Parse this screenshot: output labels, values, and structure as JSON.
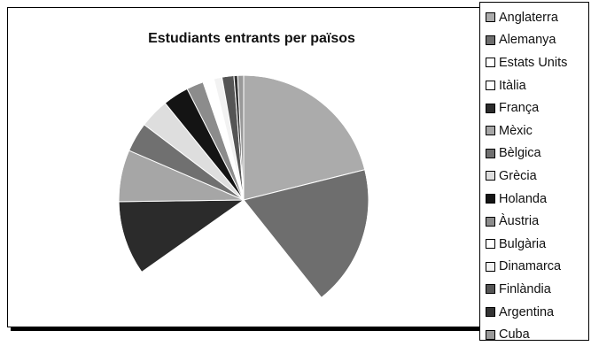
{
  "chart_data": {
    "type": "pie",
    "title": "Estudiants entrants per països",
    "legend_position": "right",
    "categories": [
      "Anglaterra",
      "Alemanya",
      "Estats Units",
      "Itàlia",
      "França",
      "Mèxic",
      "Bèlgica",
      "Grècia",
      "Holanda",
      "Àustria",
      "Bulgària",
      "Dinamarca",
      "Finlàndia",
      "Argentina",
      "Cuba"
    ],
    "values": [
      22,
      19,
      17,
      10,
      10,
      7,
      4,
      4,
      3.5,
      2.3,
      1.5,
      1.1,
      1.6,
      0.5,
      0.8
    ],
    "colors": [
      "#ababab",
      "#6e6e6e",
      "#ffffff",
      "#ffffff",
      "#2b2b2b",
      "#a6a6a6",
      "#707070",
      "#dedede",
      "#141414",
      "#8c8c8c",
      "#ffffff",
      "#f2f2f2",
      "#555555",
      "#333333",
      "#999999"
    ]
  }
}
